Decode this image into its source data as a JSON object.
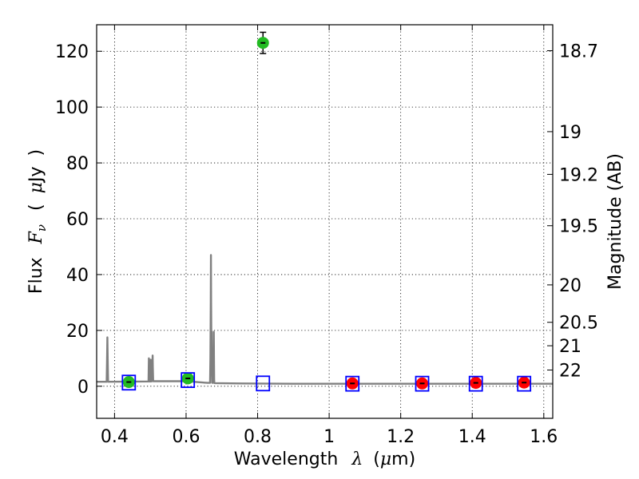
{
  "chart_data": {
    "type": "scatter",
    "xlabel": {
      "word": "Wavelength",
      "symbol": "λ",
      "unit_open": "(",
      "unit_mu": "μ",
      "unit_rest": "m)"
    },
    "ylabel": {
      "word": "Flux",
      "symbol": "F",
      "subscript": "ν",
      "unit_open": "(",
      "unit_mu": "μ",
      "unit_rest": "Jy",
      "unit_close": ")"
    },
    "y2label": "Magnitude (AB)",
    "xlim": [
      0.35,
      1.625
    ],
    "ylim": [
      -11.5,
      129.5
    ],
    "x_ticks": [
      {
        "value": 0.4,
        "label": "0.4"
      },
      {
        "value": 0.6,
        "label": "0.6"
      },
      {
        "value": 0.8,
        "label": "0.8"
      },
      {
        "value": 1.0,
        "label": "1"
      },
      {
        "value": 1.2,
        "label": "1.2"
      },
      {
        "value": 1.4,
        "label": "1.4"
      },
      {
        "value": 1.6,
        "label": "1.6"
      }
    ],
    "y_ticks": [
      {
        "value": 0,
        "label": "0"
      },
      {
        "value": 20,
        "label": "20"
      },
      {
        "value": 40,
        "label": "40"
      },
      {
        "value": 60,
        "label": "60"
      },
      {
        "value": 80,
        "label": "80"
      },
      {
        "value": 100,
        "label": "100"
      },
      {
        "value": 120,
        "label": "120"
      }
    ],
    "y2_ticks": [
      {
        "flux": 120.2,
        "label": "18.7"
      },
      {
        "flux": 91.2,
        "label": "19"
      },
      {
        "flux": 75.9,
        "label": "19.2"
      },
      {
        "flux": 57.5,
        "label": "19.5"
      },
      {
        "flux": 36.3,
        "label": "20"
      },
      {
        "flux": 22.9,
        "label": "20.5"
      },
      {
        "flux": 14.5,
        "label": "21"
      },
      {
        "flux": 5.8,
        "label": "22"
      }
    ],
    "grid": true,
    "series": [
      {
        "points": [
          {
            "x": 0.44,
            "y": 1.5,
            "err": 0.6,
            "color": "#22bb22"
          },
          {
            "x": 0.605,
            "y": 2.8,
            "err": 0.6,
            "color": "#22bb22"
          },
          {
            "x": 0.815,
            "y": 123.0,
            "err": 3.8,
            "color": "#22bb22"
          }
        ]
      },
      {
        "points": [
          {
            "x": 1.065,
            "y": 1.0,
            "err": 0.6,
            "color": "#ff0000"
          },
          {
            "x": 1.26,
            "y": 1.0,
            "err": 0.6,
            "color": "#ff0000"
          },
          {
            "x": 1.41,
            "y": 1.2,
            "err": 0.6,
            "color": "#ff0000"
          },
          {
            "x": 1.545,
            "y": 1.3,
            "err": 0.6,
            "color": "#ff0000"
          }
        ]
      },
      {
        "marker": "open-square",
        "color": "#0000ff",
        "points": [
          {
            "x": 0.44,
            "y": 1.3
          },
          {
            "x": 0.605,
            "y": 2.2
          },
          {
            "x": 0.815,
            "y": 1.0
          },
          {
            "x": 1.065,
            "y": 0.9
          },
          {
            "x": 1.26,
            "y": 0.9
          },
          {
            "x": 1.41,
            "y": 0.9
          },
          {
            "x": 1.545,
            "y": 0.9
          }
        ]
      },
      {
        "type": "line",
        "color": "#808080",
        "x": [
          0.35,
          0.378,
          0.379,
          0.38,
          0.381,
          0.382,
          0.495,
          0.4955,
          0.496,
          0.4965,
          0.497,
          0.5,
          0.5005,
          0.501,
          0.5015,
          0.502,
          0.505,
          0.5058,
          0.5065,
          0.507,
          0.508,
          0.6,
          0.66,
          0.667,
          0.668,
          0.669,
          0.6695,
          0.67,
          0.6705,
          0.6715,
          0.672,
          0.673,
          0.676,
          0.677,
          0.6775,
          0.678,
          0.6785,
          0.679,
          0.68,
          0.75,
          0.9,
          1.2,
          1.5,
          1.625
        ],
        "y": [
          1.6,
          1.6,
          9.0,
          17.5,
          9.0,
          1.6,
          1.7,
          6.0,
          10.0,
          6.0,
          1.7,
          1.7,
          6.0,
          9.5,
          6.0,
          1.7,
          1.8,
          7.0,
          11.0,
          7.0,
          1.8,
          1.8,
          1.2,
          1.2,
          10.0,
          30.0,
          47.0,
          30.0,
          20.0,
          19.5,
          10.0,
          1.2,
          1.2,
          10.0,
          19.5,
          10.0,
          2.5,
          1.2,
          1.1,
          1.0,
          0.9,
          0.9,
          0.9,
          0.9
        ]
      }
    ]
  }
}
